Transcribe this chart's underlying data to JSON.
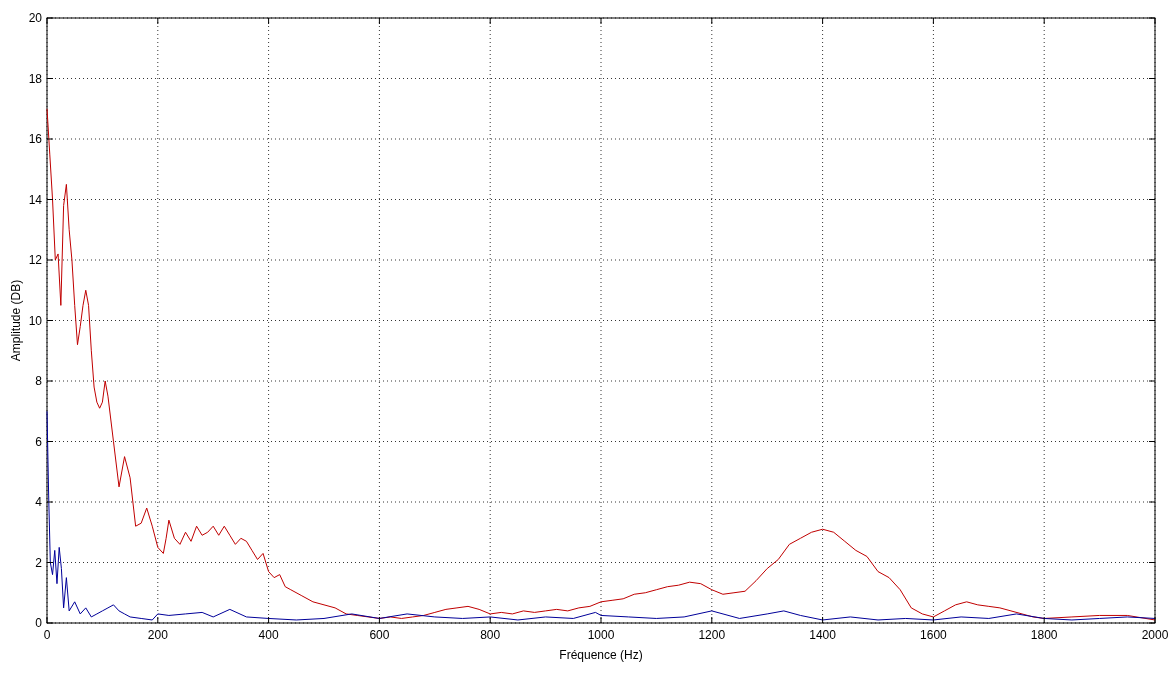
{
  "chart_data": {
    "type": "line",
    "xlabel": "Fréquence (Hz)",
    "ylabel": "Amplitude (DB)",
    "xlim": [
      0,
      2000
    ],
    "ylim": [
      0,
      20
    ],
    "xticks": [
      0,
      200,
      400,
      600,
      800,
      1000,
      1200,
      1400,
      1600,
      1800,
      2000
    ],
    "yticks": [
      0,
      2,
      4,
      6,
      8,
      10,
      12,
      14,
      16,
      18,
      20
    ],
    "grid": true,
    "line_style": "solid",
    "series": [
      {
        "color": "#c00000",
        "x": [
          0,
          5,
          10,
          15,
          20,
          25,
          30,
          35,
          40,
          45,
          50,
          55,
          60,
          65,
          70,
          75,
          80,
          85,
          90,
          95,
          100,
          105,
          110,
          120,
          130,
          140,
          150,
          160,
          170,
          180,
          190,
          200,
          210,
          215,
          220,
          230,
          240,
          250,
          260,
          270,
          280,
          290,
          300,
          310,
          320,
          330,
          340,
          350,
          360,
          370,
          380,
          390,
          400,
          410,
          420,
          430,
          440,
          460,
          480,
          500,
          520,
          540,
          560,
          580,
          600,
          620,
          640,
          660,
          680,
          700,
          720,
          740,
          760,
          780,
          800,
          820,
          840,
          860,
          880,
          900,
          920,
          940,
          960,
          980,
          1000,
          1020,
          1040,
          1060,
          1080,
          1100,
          1120,
          1140,
          1160,
          1180,
          1200,
          1220,
          1240,
          1260,
          1280,
          1300,
          1320,
          1340,
          1360,
          1380,
          1400,
          1420,
          1440,
          1460,
          1480,
          1500,
          1520,
          1540,
          1560,
          1580,
          1600,
          1620,
          1640,
          1660,
          1680,
          1700,
          1720,
          1740,
          1760,
          1780,
          1800,
          1850,
          1900,
          1950,
          2000
        ],
        "values": [
          17,
          15.5,
          14,
          12,
          12.2,
          10.5,
          13.8,
          14.5,
          13,
          12,
          10.5,
          9.2,
          9.8,
          10.5,
          11,
          10.5,
          9,
          7.8,
          7.3,
          7.1,
          7.3,
          8,
          7.5,
          6,
          4.5,
          5.5,
          4.8,
          3.2,
          3.3,
          3.8,
          3.2,
          2.5,
          2.3,
          2.8,
          3.4,
          2.8,
          2.6,
          3,
          2.7,
          3.2,
          2.9,
          3,
          3.2,
          2.9,
          3.2,
          2.9,
          2.6,
          2.8,
          2.7,
          2.4,
          2.1,
          2.3,
          1.7,
          1.5,
          1.6,
          1.2,
          1.1,
          0.9,
          0.7,
          0.6,
          0.5,
          0.3,
          0.25,
          0.2,
          0.15,
          0.2,
          0.15,
          0.2,
          0.25,
          0.35,
          0.45,
          0.5,
          0.55,
          0.45,
          0.3,
          0.35,
          0.3,
          0.4,
          0.35,
          0.4,
          0.45,
          0.4,
          0.5,
          0.55,
          0.7,
          0.75,
          0.8,
          0.95,
          1,
          1.1,
          1.2,
          1.25,
          1.35,
          1.3,
          1.1,
          0.95,
          1,
          1.05,
          1.4,
          1.8,
          2.1,
          2.6,
          2.8,
          3,
          3.1,
          3,
          2.7,
          2.4,
          2.2,
          1.7,
          1.5,
          1.1,
          0.5,
          0.3,
          0.2,
          0.4,
          0.6,
          0.7,
          0.6,
          0.55,
          0.5,
          0.4,
          0.3,
          0.2,
          0.15,
          0.2,
          0.25,
          0.25,
          0.1
        ]
      },
      {
        "color": "#000099",
        "x": [
          0,
          3,
          6,
          10,
          14,
          18,
          22,
          26,
          30,
          35,
          40,
          50,
          60,
          70,
          80,
          90,
          100,
          110,
          120,
          130,
          140,
          150,
          170,
          190,
          200,
          220,
          250,
          280,
          300,
          330,
          360,
          400,
          450,
          500,
          550,
          600,
          650,
          700,
          750,
          800,
          850,
          900,
          950,
          990,
          1000,
          1050,
          1100,
          1150,
          1200,
          1250,
          1300,
          1330,
          1360,
          1400,
          1450,
          1500,
          1550,
          1600,
          1650,
          1700,
          1750,
          1800,
          1850,
          1900,
          1950,
          2000
        ],
        "values": [
          7,
          4.2,
          2,
          1.6,
          2.4,
          1.3,
          2.5,
          1.8,
          0.5,
          1.5,
          0.4,
          0.7,
          0.3,
          0.5,
          0.2,
          0.3,
          0.4,
          0.5,
          0.6,
          0.4,
          0.3,
          0.2,
          0.15,
          0.1,
          0.3,
          0.25,
          0.3,
          0.35,
          0.2,
          0.45,
          0.2,
          0.15,
          0.1,
          0.15,
          0.3,
          0.15,
          0.3,
          0.2,
          0.15,
          0.2,
          0.1,
          0.2,
          0.15,
          0.35,
          0.25,
          0.2,
          0.15,
          0.2,
          0.4,
          0.15,
          0.3,
          0.4,
          0.25,
          0.1,
          0.2,
          0.1,
          0.15,
          0.1,
          0.2,
          0.15,
          0.3,
          0.15,
          0.1,
          0.15,
          0.2,
          0.15
        ]
      }
    ]
  }
}
